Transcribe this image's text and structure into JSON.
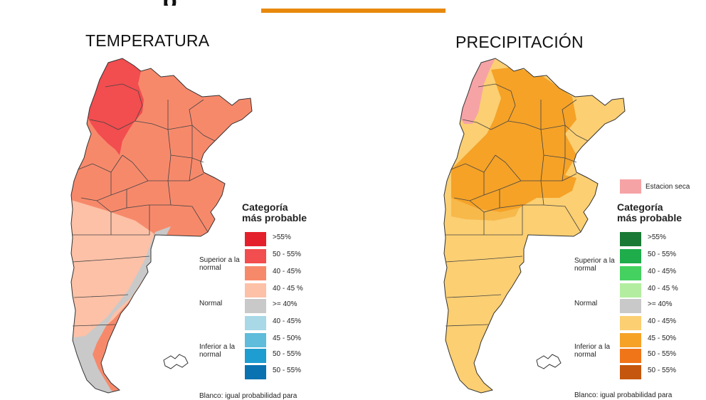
{
  "header": {
    "fragment_glyph": "p",
    "accent_color": "#e8890c"
  },
  "maps": {
    "temperature": {
      "title": "TEMPERATURA",
      "legend": {
        "title_line1": "Categoría",
        "title_line2": "más probable",
        "groups": {
          "above": "Superior a la normal",
          "normal": "Normal",
          "below": "Inferior a la normal"
        },
        "entries": [
          {
            "label": ">55%",
            "color": "#e4202c"
          },
          {
            "label": "50 - 55%",
            "color": "#f24d4f"
          },
          {
            "label": "40 - 45%",
            "color": "#f7896b"
          },
          {
            "label": "40 - 45 %",
            "color": "#fcc1a7"
          },
          {
            "label": ">= 40%",
            "color": "#c9c9c9"
          },
          {
            "label": "40 - 45%",
            "color": "#a9d8e6"
          },
          {
            "label": "45 - 50%",
            "color": "#5fbcdb"
          },
          {
            "label": "50 - 55%",
            "color": "#1e9dd0"
          },
          {
            "label": "50 - 55%",
            "color": "#0a72b0"
          }
        ],
        "footnote": "Blanco: igual probabilidad para"
      }
    },
    "precipitation": {
      "title": "PRECIPITACIÓN",
      "dry_season": {
        "label": "Estacion seca",
        "color": "#f6a3a6"
      },
      "legend": {
        "title_line1": "Categoría",
        "title_line2": "más probable",
        "groups": {
          "above": "Superior a la normal",
          "normal": "Normal",
          "below": "Inferior a la normal"
        },
        "entries": [
          {
            "label": ">55%",
            "color": "#1a7a35"
          },
          {
            "label": "50 - 55%",
            "color": "#1fac4b"
          },
          {
            "label": "40 - 45%",
            "color": "#45d160"
          },
          {
            "label": "40 - 45 %",
            "color": "#b3eea0"
          },
          {
            "label": ">= 40%",
            "color": "#c9c9c9"
          },
          {
            "label": "40 - 45%",
            "color": "#fbcf72"
          },
          {
            "label": "45 - 50%",
            "color": "#f5a227"
          },
          {
            "label": "50 - 55%",
            "color": "#f07519"
          },
          {
            "label": "50 - 55%",
            "color": "#c5560d"
          }
        ],
        "footnote": "Blanco: igual probabilidad para"
      }
    }
  }
}
